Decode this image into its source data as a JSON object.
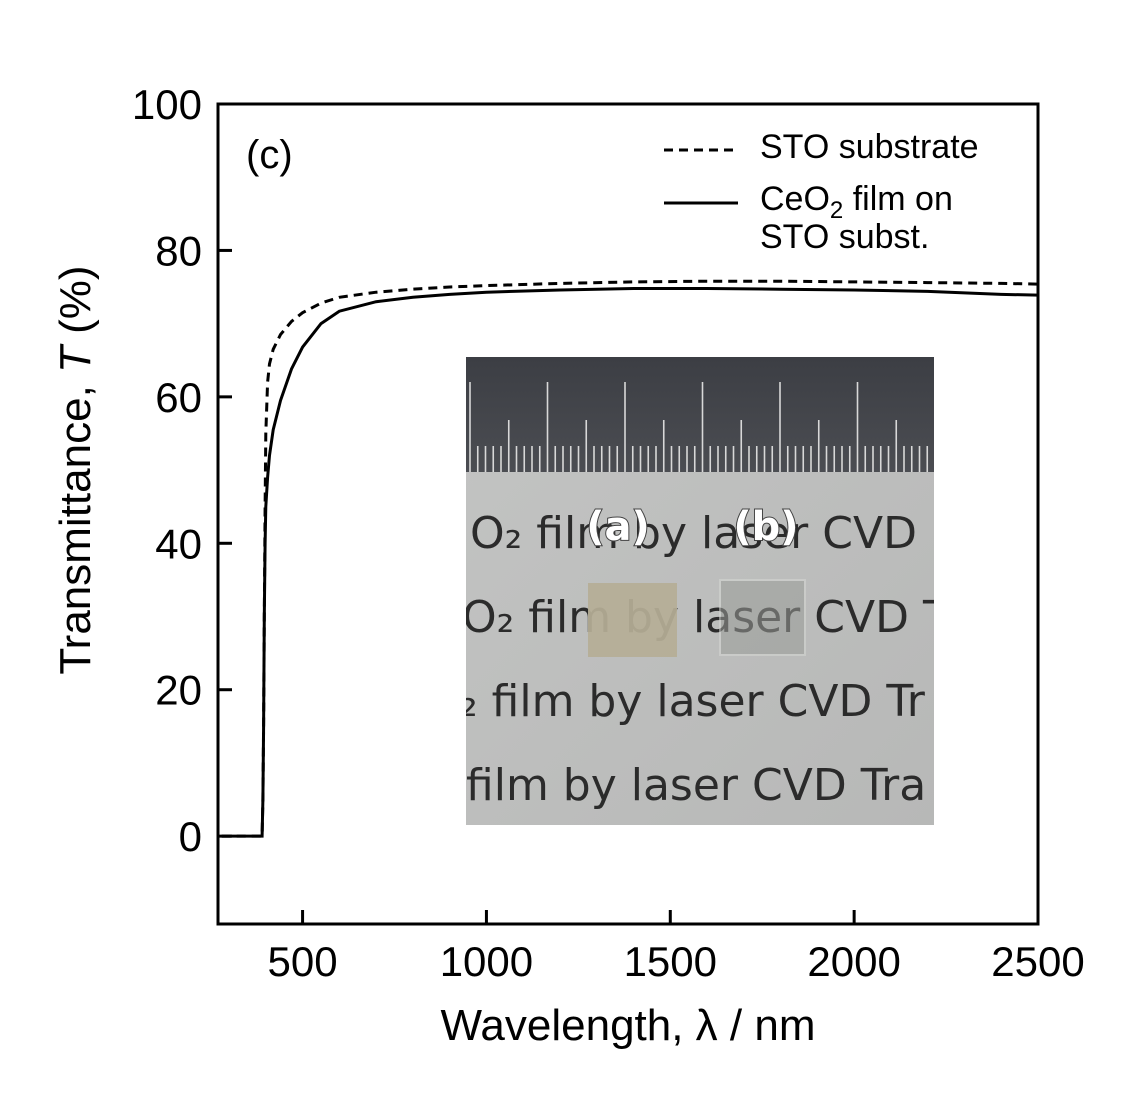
{
  "chart_data": {
    "type": "line",
    "panel_label": "(c)",
    "xlabel": "Wavelength, λ / nm",
    "ylabel_main": "Transmittance, ",
    "ylabel_symbol": "T",
    "ylabel_unit": " (%)",
    "xlim": [
      270,
      2500
    ],
    "ylim": [
      -12,
      100
    ],
    "xticks": [
      500,
      1000,
      1500,
      2000,
      2500
    ],
    "yticks": [
      0,
      20,
      40,
      60,
      80,
      100
    ],
    "grid": false,
    "legend_position": "top-right",
    "series": [
      {
        "name": "STO substrate",
        "style": "dashed",
        "color": "#000000",
        "x": [
          280,
          380,
          390,
          392,
          394,
          396,
          398,
          400,
          405,
          410,
          420,
          440,
          470,
          500,
          550,
          600,
          700,
          800,
          900,
          1000,
          1200,
          1400,
          1600,
          1800,
          2000,
          2200,
          2400,
          2500
        ],
        "y": [
          0,
          0,
          0,
          5,
          15,
          30,
          45,
          55,
          62,
          64.5,
          66.5,
          68.5,
          70.3,
          71.5,
          72.8,
          73.6,
          74.3,
          74.7,
          75.0,
          75.2,
          75.5,
          75.7,
          75.8,
          75.8,
          75.7,
          75.6,
          75.5,
          75.4
        ]
      },
      {
        "name": "CeO2 film on STO subst.",
        "style": "solid",
        "color": "#000000",
        "x": [
          280,
          380,
          390,
          392,
          394,
          396,
          398,
          400,
          405,
          410,
          420,
          440,
          470,
          500,
          550,
          600,
          700,
          800,
          900,
          1000,
          1200,
          1400,
          1600,
          1800,
          2000,
          2200,
          2400,
          2500
        ],
        "y": [
          0,
          0,
          0,
          5,
          15,
          30,
          40,
          45,
          49,
          52,
          55.5,
          59.5,
          63.8,
          66.8,
          70.0,
          71.7,
          73.0,
          73.6,
          74.0,
          74.3,
          74.6,
          74.8,
          74.8,
          74.7,
          74.6,
          74.4,
          74.0,
          73.9
        ]
      }
    ],
    "legend": {
      "entry1": "STO substrate",
      "entry2_part1": "CeO",
      "entry2_sub": "2",
      "entry2_part2": " film on",
      "entry2_line2": "STO subst."
    },
    "inset_photo": {
      "sample_labels": [
        "(a)",
        "(b)"
      ],
      "text_lines": [
        "O₂ film by laser CVD",
        "O₂ film by laser CVD T",
        "₂ film by laser CVD Tr",
        "film by laser CVD Tra"
      ]
    }
  }
}
